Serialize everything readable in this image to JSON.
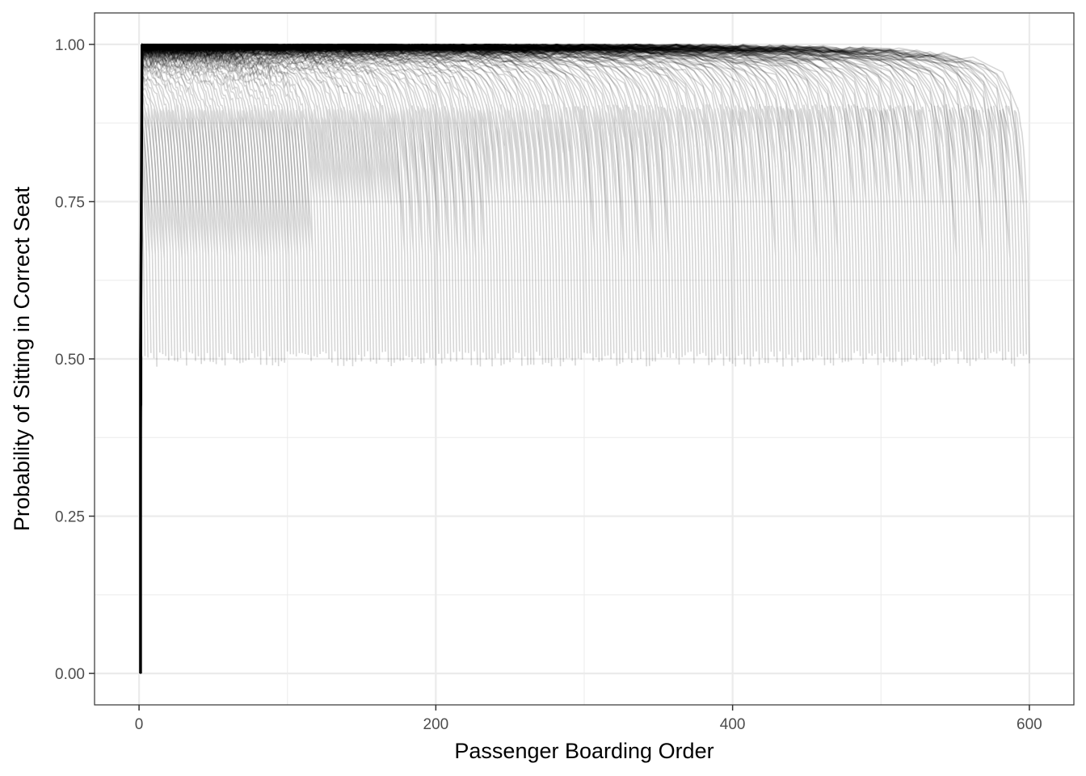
{
  "chart_data": {
    "type": "line",
    "title": "",
    "xlabel": "Passenger Boarding Order",
    "ylabel": "Probability of Sitting in Correct Seat",
    "xlim": [
      -30,
      630
    ],
    "ylim": [
      -0.05,
      1.05
    ],
    "x_ticks": [
      0,
      200,
      400,
      600
    ],
    "x_tick_labels": [
      "0",
      "200",
      "400",
      "600"
    ],
    "x_minor_ticks": [
      100,
      300,
      500
    ],
    "y_ticks": [
      0.0,
      0.25,
      0.5,
      0.75,
      1.0
    ],
    "y_tick_labels": [
      "0.00",
      "0.25",
      "0.50",
      "0.75",
      "1.00"
    ],
    "y_minor_ticks": [
      0.125,
      0.375,
      0.625,
      0.875
    ],
    "grid": true,
    "theme": "bw",
    "series_description": "Many simulated curves, one per total number of seats N from 2 to 600; each curve stays near 1.0 then drops to 0.5 at the last passenger. First passenger boarding probability near 0.",
    "n_series_min": 2,
    "n_series_max": 600,
    "first_passenger_prob": 0.0,
    "last_passenger_prob": 0.5,
    "plateau_prob": 1.0,
    "colors": {
      "curve": "#000000",
      "grid": "#ebebeb",
      "panel_border": "#333333",
      "background": "#ffffff"
    }
  }
}
